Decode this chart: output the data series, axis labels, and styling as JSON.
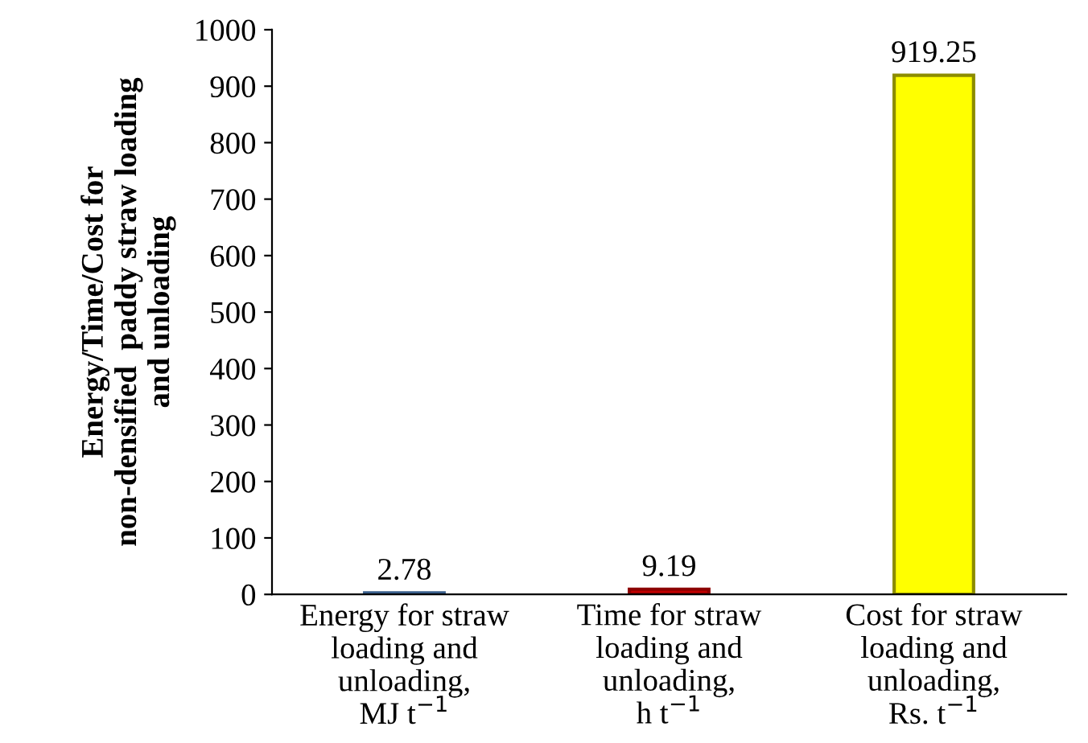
{
  "chart_data": {
    "type": "bar",
    "ylabel": "Energy/Time/Cost for\nnon-densified  paddy straw loading\nand unloading",
    "categories": [
      "Energy for straw\nloading and\nunloading,\nMJ t$^{−1}$",
      "Time for straw\nloading and\nunloading,\nh t$^{−1}$",
      "Cost for straw\nloading and\nunloading,\nRs. t$^{−1}$"
    ],
    "values": [
      2.78,
      9.19,
      919.25
    ],
    "colors": [
      "#4a7ebb",
      "#c00000",
      "#ffff00"
    ],
    "ylim": [
      0,
      1000
    ],
    "yticks": [
      0,
      100,
      200,
      300,
      400,
      500,
      600,
      700,
      800,
      900,
      1000
    ],
    "grid": false,
    "data_labels": true
  }
}
